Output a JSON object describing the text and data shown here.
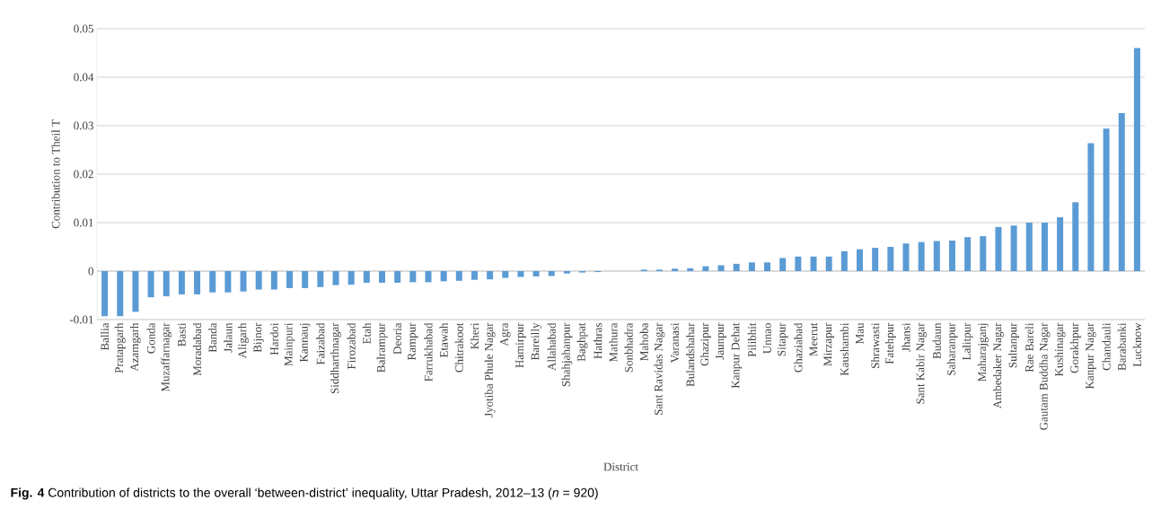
{
  "chart_data": {
    "type": "bar",
    "title": "**Fig. 4** Contribution of districts to the overall ‘between-district’ inequality, Uttar Pradesh, 2012–13 (*n* = 920)",
    "xlabel": "District",
    "ylabel": "Contribution to Theil T",
    "categories": [
      "Ballia",
      "Pratapgarh",
      "Azamgarh",
      "Gonda",
      "Muzaffarnagar",
      "Basti",
      "Moradabad",
      "Banda",
      "Jalaun",
      "Aligarh",
      "Bijnor",
      "Hardoi",
      "Mainpuri",
      "Kannauj",
      "Faizabad",
      "Siddharthnagar",
      "Firozabad",
      "Etah",
      "Balrampur",
      "Deoria",
      "Rampur",
      "Farrukhabad",
      "Etawah",
      "Chitrakoot",
      "Kheri",
      "Jyotiba Phule Nagar",
      "Agra",
      "Hamirpur",
      "Bareilly",
      "Allahabad",
      "Shahjahanpur",
      "Baghpat",
      "Hathras",
      "Mathura",
      "Sonbhadra",
      "Mahoba",
      "Sant Ravidas Nagar",
      "Varanasi",
      "Bulandshahar",
      "Ghazipur",
      "Jaunpur",
      "Kanpur Dehat",
      "Pilibhit",
      "Unnao",
      "Sitapur",
      "Ghaziabad",
      "Meerut",
      "Mirzapur",
      "Kaushambi",
      "Mau",
      "Shrawasti",
      "Fatehpur",
      "Jhansi",
      "Sant Kabir Nagar",
      "Budaun",
      "Saharanpur",
      "Lalitpur",
      "Maharajganj",
      "Ambedaker Nagar",
      "Sultanpur",
      "Rae Bareli",
      "Gautam Buddha Nagar",
      "Kushinagar",
      "Gorakhpur",
      "Kanpur Nagar",
      "Chandauli",
      "Barabanki",
      "Lucknow"
    ],
    "values": [
      -0.0093,
      -0.0093,
      -0.0084,
      -0.0054,
      -0.0052,
      -0.0048,
      -0.0048,
      -0.0044,
      -0.0044,
      -0.0042,
      -0.0038,
      -0.0038,
      -0.0035,
      -0.0035,
      -0.0033,
      -0.0029,
      -0.0028,
      -0.0024,
      -0.0024,
      -0.0024,
      -0.0023,
      -0.0023,
      -0.0021,
      -0.002,
      -0.0018,
      -0.0017,
      -0.0014,
      -0.0012,
      -0.0011,
      -0.001,
      -0.0005,
      -0.0003,
      -0.0002,
      0,
      0,
      0.0003,
      0.0003,
      0.0005,
      0.0006,
      0.001,
      0.0012,
      0.0015,
      0.0018,
      0.0018,
      0.0027,
      0.003,
      0.003,
      0.003,
      0.0041,
      0.0045,
      0.0048,
      0.005,
      0.0057,
      0.006,
      0.0062,
      0.0063,
      0.007,
      0.0072,
      0.0091,
      0.0094,
      0.01,
      0.01,
      0.0111,
      0.0142,
      0.0264,
      0.0294,
      0.0326,
      0.046
    ],
    "color": "#5b9bd5",
    "ylim": [
      -0.01,
      0.05
    ],
    "yticks": [
      -0.01,
      0,
      0.01,
      0.02,
      0.03,
      0.04,
      0.05
    ],
    "grid": "y"
  }
}
